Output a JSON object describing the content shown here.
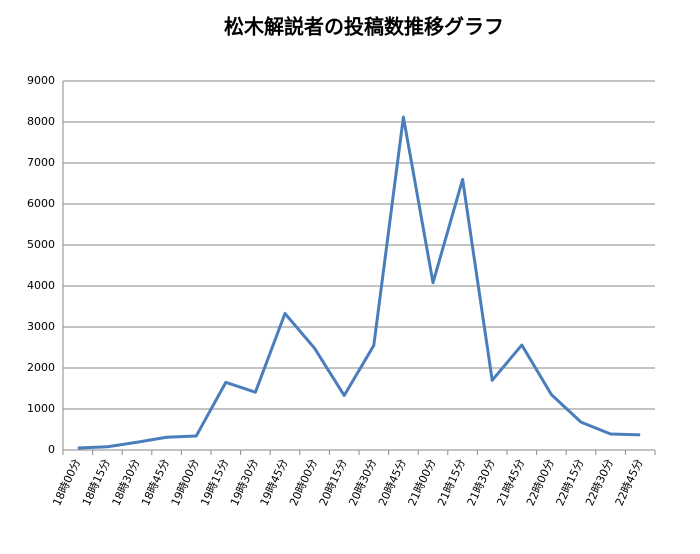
{
  "chart_data": {
    "type": "line",
    "title": "松木解説者の投稿数推移グラフ",
    "categories": [
      "18時00分",
      "18時15分",
      "18時30分",
      "18時45分",
      "19時00分",
      "19時15分",
      "19時30分",
      "19時45分",
      "20時00分",
      "20時15分",
      "20時30分",
      "20時45分",
      "21時00分",
      "21時15分",
      "21時30分",
      "21時45分",
      "22時00分",
      "22時15分",
      "22時30分",
      "22時45分"
    ],
    "values": [
      50,
      80,
      190,
      310,
      340,
      1650,
      1410,
      3330,
      2480,
      1330,
      2550,
      8120,
      4080,
      6600,
      1700,
      2560,
      1350,
      680,
      390,
      370
    ],
    "color": "#4a7ebb",
    "ylim": [
      0,
      9000
    ],
    "yticks": [
      0,
      1000,
      2000,
      3000,
      4000,
      5000,
      6000,
      7000,
      8000,
      9000
    ],
    "grid": true
  }
}
